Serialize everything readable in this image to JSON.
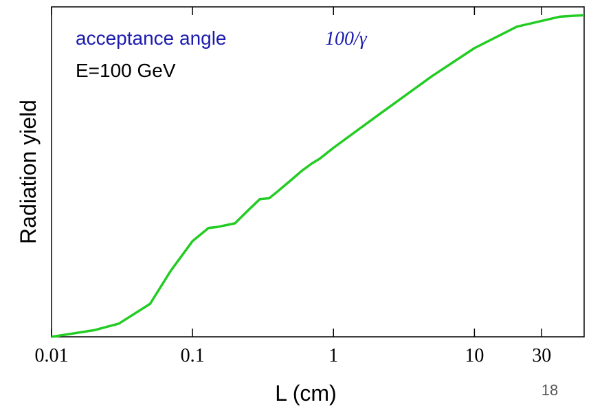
{
  "chart_data": {
    "type": "line",
    "annotations": [
      "acceptance angle",
      "100/γ",
      "E=100 GeV"
    ],
    "y_label": "Radiation yield",
    "x_label": "L (cm)",
    "page_number": "18",
    "x_log": true,
    "xlim": [
      0.01,
      60
    ],
    "xticks": [
      0.01,
      0.1,
      1,
      10,
      30
    ],
    "ylim": [
      0,
      1
    ],
    "yticks": [],
    "x": [
      0.01,
      0.02,
      0.03,
      0.05,
      0.07,
      0.1,
      0.13,
      0.15,
      0.2,
      0.25,
      0.3,
      0.35,
      0.4,
      0.5,
      0.6,
      0.7,
      0.8,
      1,
      2,
      5,
      10,
      20,
      40,
      60
    ],
    "series": [
      {
        "name": "Radiation yield",
        "color": "#22cc22",
        "values": [
          0,
          0.02,
          0.04,
          0.1,
          0.2,
          0.29,
          0.33,
          0.333,
          0.344,
          0.385,
          0.417,
          0.42,
          0.44,
          0.475,
          0.504,
          0.525,
          0.54,
          0.573,
          0.667,
          0.79,
          0.875,
          0.94,
          0.97,
          0.975
        ]
      }
    ]
  }
}
